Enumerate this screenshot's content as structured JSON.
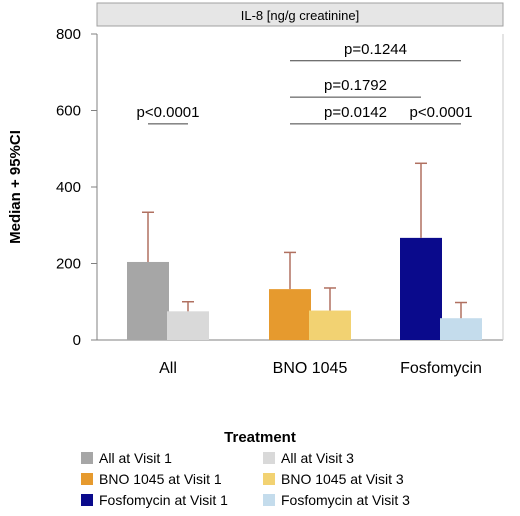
{
  "chart_data": {
    "type": "bar",
    "title": "IL-8 [ng/g creatinine]",
    "ylabel": "Median + 95%CI",
    "xlabel": "",
    "ylim": [
      0,
      800
    ],
    "yticks": [
      0,
      200,
      400,
      600,
      800
    ],
    "grid": false,
    "groups": [
      "All",
      "BNO 1045",
      "Fosfomycin"
    ],
    "bars": [
      {
        "name": "All at Visit 1",
        "group": "All",
        "value": 204,
        "ci_upper": 334,
        "color": "#a6a6a6"
      },
      {
        "name": "All at Visit 3",
        "group": "All",
        "value": 75,
        "ci_upper": 100,
        "color": "#d9d9d9"
      },
      {
        "name": "BNO 1045 at Visit 1",
        "group": "BNO 1045",
        "value": 133,
        "ci_upper": 229,
        "color": "#e69a2e"
      },
      {
        "name": "BNO 1045 at Visit 3",
        "group": "BNO 1045",
        "value": 77,
        "ci_upper": 136,
        "color": "#f2d272"
      },
      {
        "name": "Fosfomycin at Visit 1",
        "group": "Fosfomycin",
        "value": 267,
        "ci_upper": 462,
        "color": "#0a0a8c"
      },
      {
        "name": "Fosfomycin at Visit 3",
        "group": "Fosfomycin",
        "value": 57,
        "ci_upper": 98,
        "color": "#c4dcec"
      }
    ],
    "error_bar_color": "#b07060",
    "comparisons": [
      {
        "label": "p<0.0001",
        "from_bar": 0,
        "to_bar": 1,
        "level": 565
      },
      {
        "label": "p=0.0142",
        "from_bar": 2,
        "to_bar": 4,
        "level": 565
      },
      {
        "label": "p<0.0001",
        "from_bar": 4,
        "to_bar": 5,
        "level": 565
      },
      {
        "label": "p=0.1792",
        "from_bar": 2,
        "to_bar": 4,
        "level": 635
      },
      {
        "label": "p=0.1244",
        "from_bar": 2,
        "to_bar": 5,
        "level": 730
      }
    ],
    "legend": {
      "title": "Treatment",
      "placement": "bottom",
      "entries": [
        {
          "label": "All at Visit 1",
          "color": "#a6a6a6"
        },
        {
          "label": "All at Visit 3",
          "color": "#d9d9d9"
        },
        {
          "label": "BNO 1045 at Visit 1",
          "color": "#e69a2e"
        },
        {
          "label": "BNO 1045 at Visit 3",
          "color": "#f2d272"
        },
        {
          "label": "Fosfomycin at Visit 1",
          "color": "#0a0a8c"
        },
        {
          "label": "Fosfomycin at Visit 3",
          "color": "#c4dcec"
        }
      ]
    }
  }
}
